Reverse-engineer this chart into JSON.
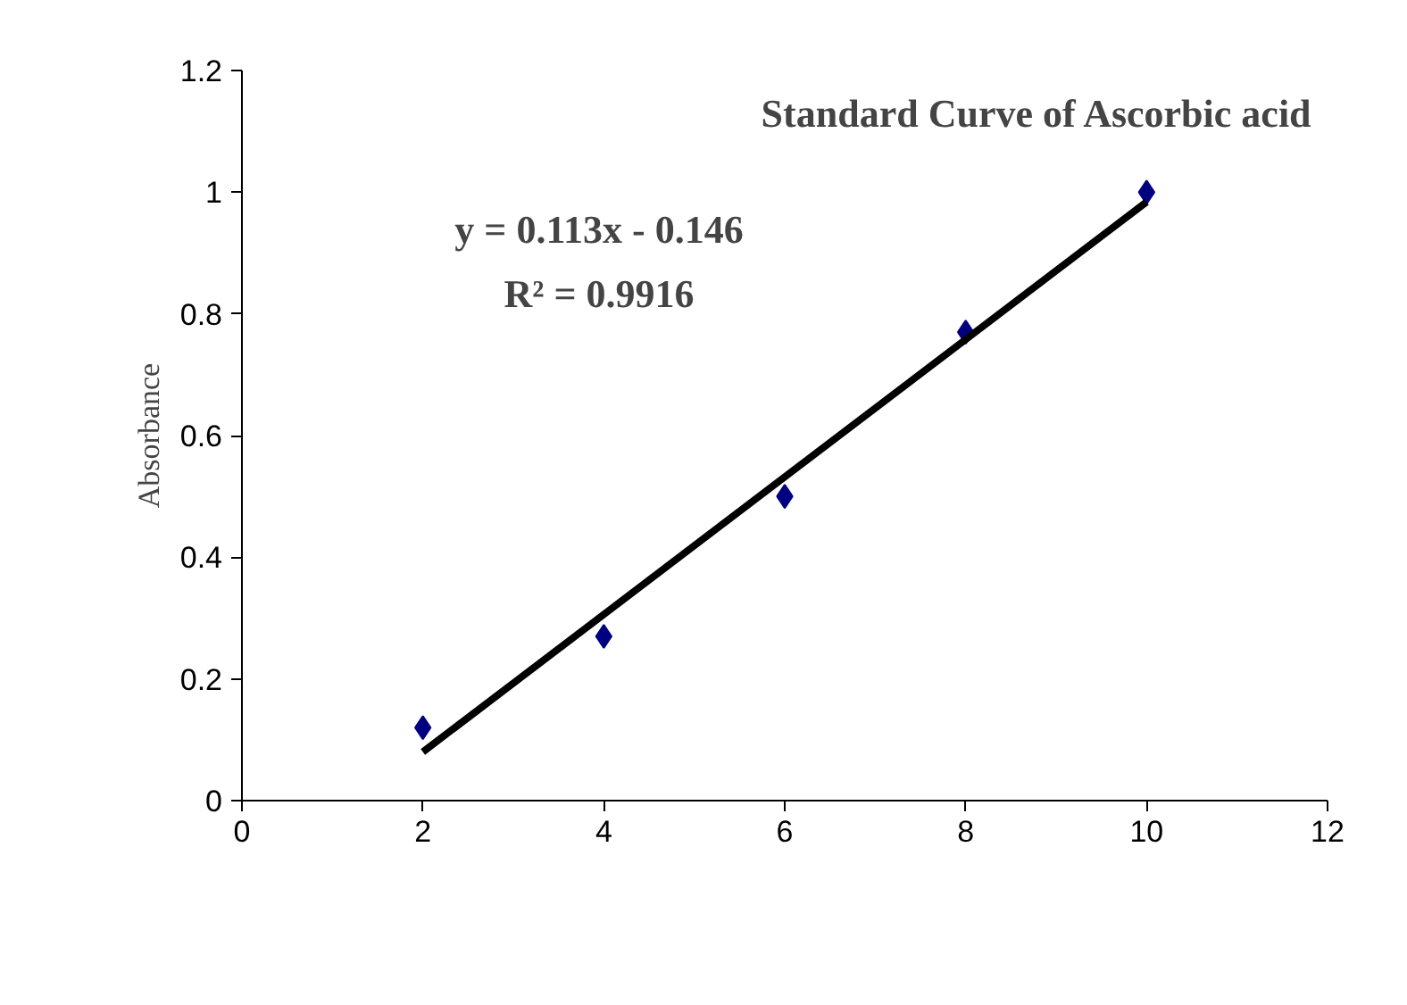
{
  "chart_data": {
    "type": "scatter",
    "title": "Standard Curve of Ascorbic acid",
    "ylabel": "Absorbance",
    "annotations": [
      "y = 0.113x - 0.146",
      "R² = 0.9916"
    ],
    "x": [
      2,
      4,
      6,
      8,
      10
    ],
    "series": [
      {
        "color": "#000080",
        "values": [
          0.12,
          0.27,
          0.5,
          0.77,
          1.0
        ],
        "marker": "diamond"
      },
      {
        "type": "line",
        "color": "#000000",
        "x": [
          2,
          10
        ],
        "values": [
          0.08,
          0.984
        ],
        "line_style": "solid"
      }
    ],
    "xlim": [
      0,
      12
    ],
    "xticks": [
      0,
      2,
      4,
      6,
      8,
      10,
      12
    ],
    "ylim": [
      0,
      1.2
    ],
    "yticks": [
      0,
      0.2,
      0.4,
      0.6,
      0.8,
      1,
      1.2
    ],
    "grid": false
  }
}
